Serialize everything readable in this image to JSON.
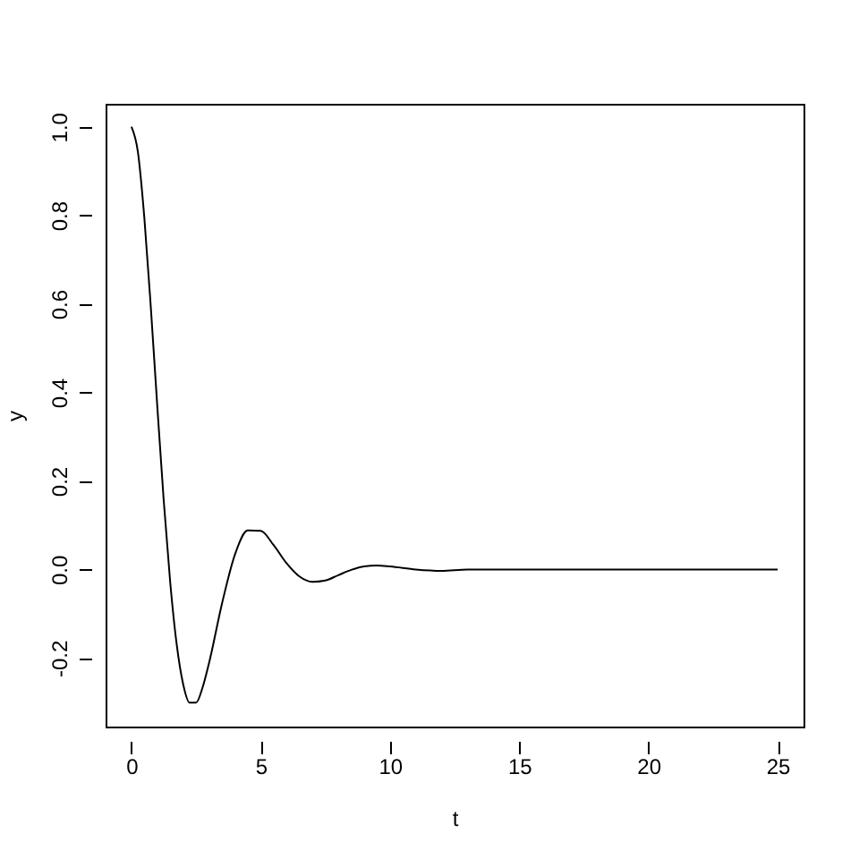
{
  "chart_data": {
    "type": "line",
    "xlabel": "t",
    "ylabel": "y",
    "x": [
      0,
      0.25,
      0.5,
      0.75,
      1,
      1.25,
      1.5,
      1.75,
      2,
      2.25,
      2.5,
      2.75,
      3,
      3.5,
      4,
      4.5,
      5,
      5.5,
      6,
      6.5,
      7,
      7.5,
      8,
      8.5,
      9,
      9.5,
      10,
      11,
      12,
      13,
      14,
      16,
      18,
      20,
      22,
      25
    ],
    "series": [
      {
        "color": "#000000",
        "values": [
          1,
          0.943,
          0.794,
          0.592,
          0.369,
          0.155,
          -0.029,
          -0.169,
          -0.259,
          -0.301,
          -0.301,
          -0.267,
          -0.212,
          -0.078,
          0.033,
          0.088,
          0.087,
          0.055,
          0.014,
          -0.016,
          -0.028,
          -0.025,
          -0.013,
          -0.001,
          0.007,
          0.009,
          0.007,
          0,
          -0.003,
          0,
          0,
          0,
          0,
          0,
          0,
          0
        ]
      }
    ],
    "xlim": [
      -1,
      26
    ],
    "xticks": [
      0,
      5,
      10,
      15,
      20,
      25
    ],
    "ylim": [
      -0.355,
      1.052
    ],
    "yticks": [
      {
        "value": -0.2,
        "label": "-0.2"
      },
      {
        "value": 0,
        "label": "0.0"
      },
      {
        "value": 0.2,
        "label": "0.2"
      },
      {
        "value": 0.4,
        "label": "0.4"
      },
      {
        "value": 0.6,
        "label": "0.6"
      },
      {
        "value": 0.8,
        "label": "0.8"
      },
      {
        "value": 1,
        "label": "1.0"
      }
    ],
    "grid": false,
    "marker": "none",
    "line_style": "solid"
  }
}
